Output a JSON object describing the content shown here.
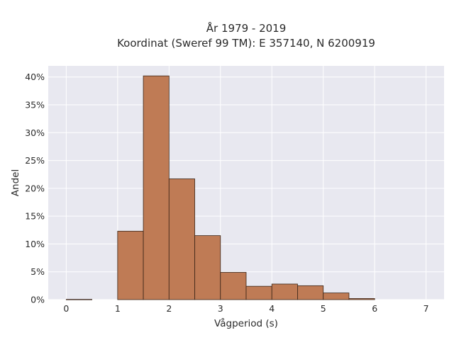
{
  "chart_data": {
    "type": "bar",
    "title_line1": "År 1979 - 2019",
    "title_line2": "Koordinat (Sweref 99 TM): E 357140, N 6200919",
    "xlabel": "Vågperiod (s)",
    "ylabel": "Andel",
    "xlim": [
      -0.35,
      7.35
    ],
    "ylim": [
      0,
      0.42
    ],
    "x_ticks": [
      0,
      1,
      2,
      3,
      4,
      5,
      6,
      7
    ],
    "x_tick_labels": [
      "0",
      "1",
      "2",
      "3",
      "4",
      "5",
      "6",
      "7"
    ],
    "y_ticks": [
      0,
      0.05,
      0.1,
      0.15,
      0.2,
      0.25,
      0.3,
      0.35,
      0.4
    ],
    "y_tick_labels": [
      "0%",
      "5%",
      "10%",
      "15%",
      "20%",
      "25%",
      "30%",
      "35%",
      "40%"
    ],
    "bins": [
      {
        "x0": 0.0,
        "x1": 0.5,
        "value": 0.0005
      },
      {
        "x0": 1.0,
        "x1": 1.5,
        "value": 0.123
      },
      {
        "x0": 1.5,
        "x1": 2.0,
        "value": 0.402
      },
      {
        "x0": 2.0,
        "x1": 2.5,
        "value": 0.217
      },
      {
        "x0": 2.5,
        "x1": 3.0,
        "value": 0.115
      },
      {
        "x0": 3.0,
        "x1": 3.5,
        "value": 0.049
      },
      {
        "x0": 3.5,
        "x1": 4.0,
        "value": 0.024
      },
      {
        "x0": 4.0,
        "x1": 4.5,
        "value": 0.028
      },
      {
        "x0": 4.5,
        "x1": 5.0,
        "value": 0.025
      },
      {
        "x0": 5.0,
        "x1": 5.5,
        "value": 0.012
      },
      {
        "x0": 5.5,
        "x1": 6.0,
        "value": 0.002
      }
    ],
    "grid": true,
    "colors": {
      "bar_fill": "#bf7b55",
      "bar_edge": "#3a2417",
      "plot_bg": "#e8e8f0",
      "grid": "#ffffff"
    }
  }
}
